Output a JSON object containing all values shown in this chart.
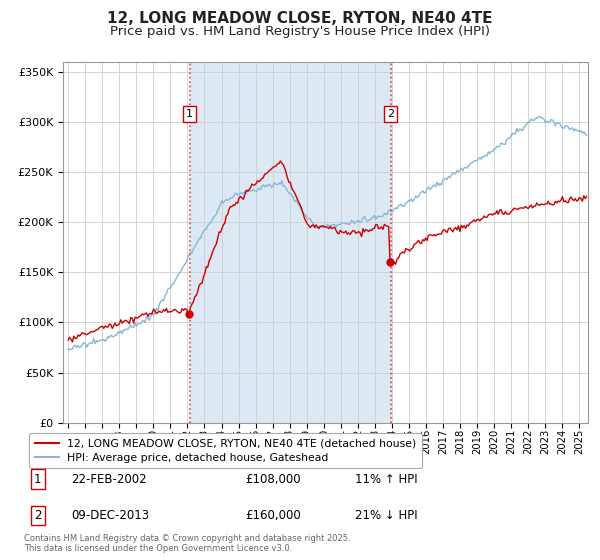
{
  "title": "12, LONG MEADOW CLOSE, RYTON, NE40 4TE",
  "subtitle": "Price paid vs. HM Land Registry's House Price Index (HPI)",
  "title_fontsize": 11,
  "subtitle_fontsize": 9.5,
  "background_color": "#ffffff",
  "plot_bg_color": "#ffffff",
  "grid_color": "#cccccc",
  "shaded_region_color": "#dce9f5",
  "red_line_color": "#cc0000",
  "blue_line_color": "#85b8d8",
  "marker1_date": 2002.13,
  "marker2_date": 2013.92,
  "marker1_value": 108000,
  "marker2_value": 160000,
  "vline_color": "#dd4444",
  "ylim": [
    0,
    360000
  ],
  "xlim": [
    1994.7,
    2025.5
  ],
  "yticks": [
    0,
    50000,
    100000,
    150000,
    200000,
    250000,
    300000,
    350000
  ],
  "legend_labels": [
    "12, LONG MEADOW CLOSE, RYTON, NE40 4TE (detached house)",
    "HPI: Average price, detached house, Gateshead"
  ],
  "transaction1_date": "22-FEB-2002",
  "transaction1_price": "£108,000",
  "transaction1_hpi": "11% ↑ HPI",
  "transaction2_date": "09-DEC-2013",
  "transaction2_price": "£160,000",
  "transaction2_hpi": "21% ↓ HPI",
  "footer": "Contains HM Land Registry data © Crown copyright and database right 2025.\nThis data is licensed under the Open Government Licence v3.0.",
  "xtick_years": [
    1995,
    1996,
    1997,
    1998,
    1999,
    2000,
    2001,
    2002,
    2003,
    2004,
    2005,
    2006,
    2007,
    2008,
    2009,
    2010,
    2011,
    2012,
    2013,
    2014,
    2015,
    2016,
    2017,
    2018,
    2019,
    2020,
    2021,
    2022,
    2023,
    2024,
    2025
  ]
}
